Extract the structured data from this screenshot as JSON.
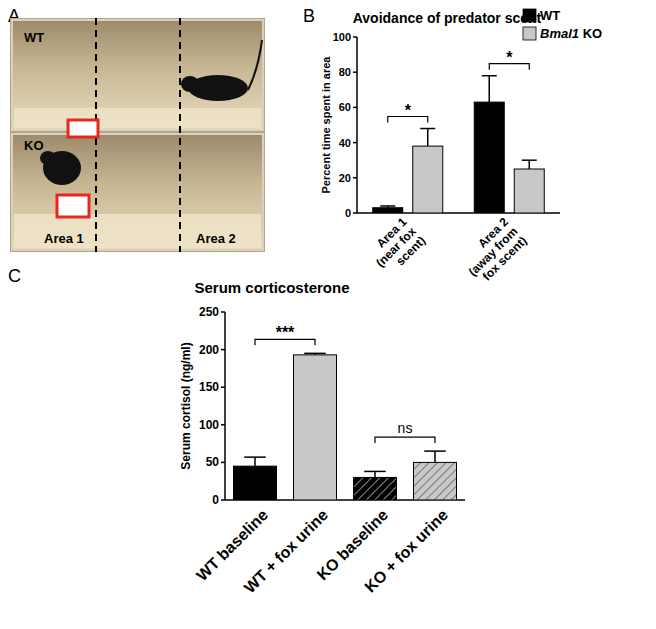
{
  "panel_labels": [
    "A",
    "B",
    "C"
  ],
  "photo": {
    "labels": {
      "top": "WT",
      "bottom": "KO",
      "area_1": "Area 1",
      "area_2": "Area 2"
    }
  },
  "chart_data": [
    {
      "type": "bar",
      "title": "Avoidance of predator scent",
      "categories": [
        "Area 1 (near fox scent)",
        "Area 2 (away from fox scent)"
      ],
      "series": [
        {
          "name": "WT",
          "color": "#000000",
          "values": [
            3,
            63
          ],
          "errors": [
            1,
            15
          ]
        },
        {
          "name": "Bmal1 KO",
          "color": "#c8c8c8",
          "values": [
            38,
            25
          ],
          "errors": [
            10,
            5
          ]
        }
      ],
      "ylabel": "Percent time spent in area",
      "ylim": [
        0,
        100
      ],
      "yticks": [
        0,
        20,
        40,
        60,
        80,
        100
      ],
      "legend": "top-right",
      "annotations": [
        {
          "category": 0,
          "label": "*"
        },
        {
          "category": 1,
          "label": "*"
        }
      ]
    },
    {
      "type": "bar",
      "title": "Serum corticosterone",
      "categories": [
        "WT baseline",
        "WT + fox urine",
        "KO baseline",
        "KO + fox urine"
      ],
      "values": [
        45,
        193,
        30,
        50
      ],
      "errors": [
        12,
        2,
        8,
        15
      ],
      "colors": [
        "#000000",
        "#c8c8c8",
        "#000000",
        "#c8c8c8"
      ],
      "ylabel": "Serum cortisol (ng/ml)",
      "ylim": [
        0,
        250
      ],
      "yticks": [
        0,
        50,
        100,
        150,
        200,
        250
      ],
      "annotations": [
        {
          "categories": [
            0,
            1
          ],
          "label": "***"
        },
        {
          "categories": [
            2,
            3
          ],
          "label": "ns"
        }
      ]
    }
  ]
}
